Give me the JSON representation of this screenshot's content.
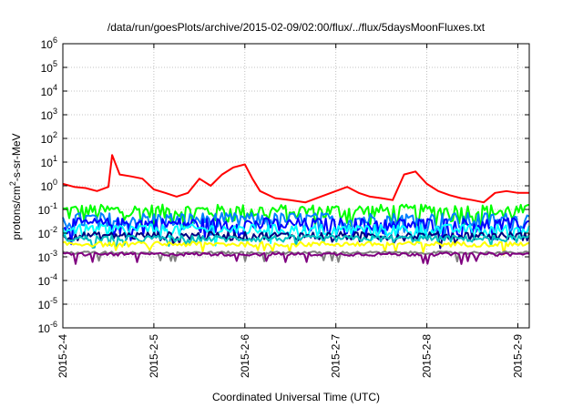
{
  "chart_data": {
    "type": "line",
    "title": "/data/run/goesPlots/archive/2015-02-09/02:00/flux/../flux/5daysMoonFluxes.txt",
    "xlabel": "Coordinated Universal Time (UTC)",
    "ylabel": {
      "base": "protons/cm",
      "sup": "2",
      "rest": "-s-sr-MeV"
    },
    "y_scale": "log",
    "ylim_exp": [
      -6,
      6
    ],
    "y_tick_exponents": [
      6,
      5,
      4,
      3,
      2,
      1,
      0,
      -1,
      -2,
      -3,
      -4,
      -5,
      -6
    ],
    "y_tick_base": "10",
    "xlim_days": [
      "2015-2-4",
      "2015-2-9 03:00"
    ],
    "x_tick_labels": [
      "2015-2-4",
      "2015-2-5",
      "2015-2-6",
      "2015-2-7",
      "2015-2-8",
      "2015-2-9"
    ],
    "grid": true,
    "series": [
      {
        "color": "#ff0000",
        "points": [
          [
            "2015-2-4 00:00",
            1.2
          ],
          [
            "2015-2-4 03:00",
            0.9
          ],
          [
            "2015-2-4 06:00",
            0.8
          ],
          [
            "2015-2-4 09:00",
            0.6
          ],
          [
            "2015-2-4 12:00",
            0.9
          ],
          [
            "2015-2-4 13:00",
            20
          ],
          [
            "2015-2-4 15:00",
            3
          ],
          [
            "2015-2-4 18:00",
            2.5
          ],
          [
            "2015-2-4 21:00",
            2
          ],
          [
            "2015-2-5 00:00",
            0.7
          ],
          [
            "2015-2-5 03:00",
            0.5
          ],
          [
            "2015-2-5 06:00",
            0.35
          ],
          [
            "2015-2-5 09:00",
            0.5
          ],
          [
            "2015-2-5 12:00",
            2
          ],
          [
            "2015-2-5 15:00",
            1
          ],
          [
            "2015-2-5 18:00",
            3
          ],
          [
            "2015-2-5 21:00",
            6
          ],
          [
            "2015-2-6 00:00",
            8
          ],
          [
            "2015-2-6 02:00",
            2
          ],
          [
            "2015-2-6 04:00",
            0.6
          ],
          [
            "2015-2-6 08:00",
            0.3
          ],
          [
            "2015-2-6 12:00",
            0.25
          ],
          [
            "2015-2-6 16:00",
            0.2
          ],
          [
            "2015-2-6 20:00",
            0.35
          ],
          [
            "2015-2-7 00:00",
            0.6
          ],
          [
            "2015-2-7 03:00",
            0.9
          ],
          [
            "2015-2-7 06:00",
            0.5
          ],
          [
            "2015-2-7 09:00",
            0.35
          ],
          [
            "2015-2-7 12:00",
            0.3
          ],
          [
            "2015-2-7 15:00",
            0.25
          ],
          [
            "2015-2-7 18:00",
            3
          ],
          [
            "2015-2-7 21:00",
            4
          ],
          [
            "2015-2-8 00:00",
            1.2
          ],
          [
            "2015-2-8 03:00",
            0.6
          ],
          [
            "2015-2-8 06:00",
            0.4
          ],
          [
            "2015-2-8 09:00",
            0.3
          ],
          [
            "2015-2-8 12:00",
            0.25
          ],
          [
            "2015-2-8 15:00",
            0.2
          ],
          [
            "2015-2-8 18:00",
            0.5
          ],
          [
            "2015-2-8 21:00",
            0.6
          ],
          [
            "2015-2-9 00:00",
            0.5
          ],
          [
            "2015-2-9 03:00",
            0.5
          ]
        ]
      },
      {
        "color": "#00ff00",
        "noisy": [
          0.09,
          0.5
        ]
      },
      {
        "color": "#0080ff",
        "noisy": [
          0.04,
          0.5
        ]
      },
      {
        "color": "#0000ff",
        "noisy": [
          0.025,
          0.45
        ]
      },
      {
        "color": "#00ffff",
        "noisy": [
          0.015,
          0.35
        ]
      },
      {
        "color": "#000080",
        "noisy": [
          0.008,
          0.25
        ]
      },
      {
        "color": "#00c0c0",
        "noisy": [
          0.006,
          0.2
        ]
      },
      {
        "color": "#ffff00",
        "noisy": [
          0.0035,
          0.15
        ]
      },
      {
        "color": "#808080",
        "noisy": [
          0.0015,
          0.08
        ]
      },
      {
        "color": "#800080",
        "noisy": [
          0.0013,
          0.1
        ]
      }
    ]
  }
}
